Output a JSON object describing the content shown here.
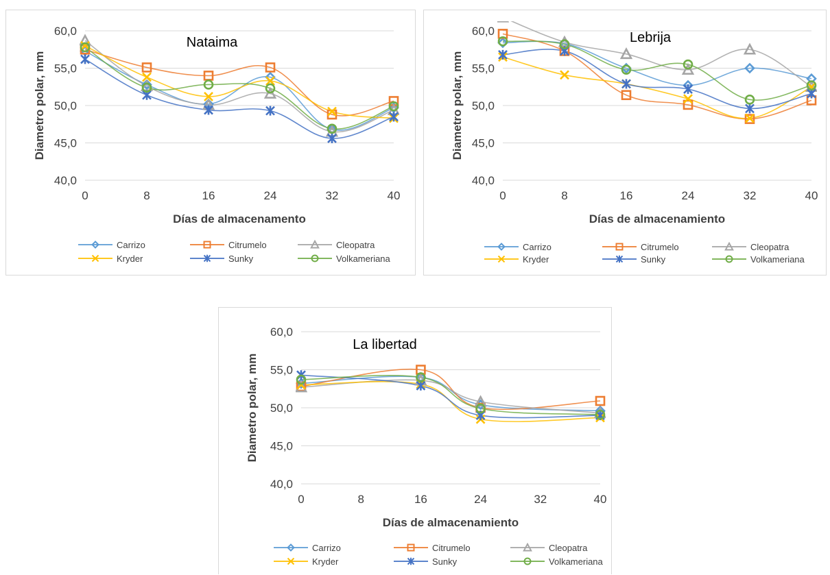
{
  "colors": {
    "Carrizo": "#5b9bd5",
    "Citrumelo": "#ed7d31",
    "Cleopatra": "#a5a5a5",
    "Kryder": "#ffc000",
    "Sunky": "#4472c4",
    "Volkameriana": "#70ad47",
    "grid": "#d9d9d9",
    "axis_text": "#404040"
  },
  "markers": {
    "Carrizo": "diamond",
    "Citrumelo": "square",
    "Cleopatra": "triangle",
    "Kryder": "x",
    "Sunky": "star",
    "Volkameriana": "circle"
  },
  "chart_data": [
    {
      "type": "line",
      "title": "Nataima",
      "xlabel": "Días de almacenamento",
      "ylabel": "Diametro polar, mm",
      "x": [
        0,
        8,
        16,
        24,
        32,
        40
      ],
      "y_ticks": [
        "40,0",
        "45,0",
        "50,0",
        "55,0",
        "60,0"
      ],
      "ylim": [
        40,
        60
      ],
      "grid": true,
      "legend": "bottom",
      "series": [
        {
          "name": "Carrizo",
          "values": [
            57.3,
            52.8,
            50.2,
            53.8,
            46.8,
            49.7
          ]
        },
        {
          "name": "Citrumelo",
          "values": [
            57.5,
            55.1,
            54.0,
            55.1,
            48.8,
            50.6
          ]
        },
        {
          "name": "Cleopatra",
          "values": [
            58.7,
            52.6,
            50.1,
            51.6,
            46.5,
            49.4
          ]
        },
        {
          "name": "Kryder",
          "values": [
            58.0,
            53.8,
            51.2,
            53.3,
            49.2,
            48.3
          ]
        },
        {
          "name": "Sunky",
          "values": [
            56.2,
            51.4,
            49.4,
            49.3,
            45.6,
            48.5
          ]
        },
        {
          "name": "Volkameriana",
          "values": [
            57.8,
            52.4,
            52.8,
            52.3,
            46.9,
            49.9
          ]
        }
      ]
    },
    {
      "type": "line",
      "title": "Lebrija",
      "xlabel": "Días de almacenamiento",
      "ylabel": "Diametro polar, mm",
      "x": [
        0,
        8,
        16,
        24,
        32,
        40
      ],
      "y_ticks": [
        "40,0",
        "45,0",
        "50,0",
        "55,0",
        "60,0"
      ],
      "ylim": [
        40,
        60
      ],
      "grid": true,
      "legend": "bottom",
      "series": [
        {
          "name": "Carrizo",
          "values": [
            58.4,
            58.3,
            55.0,
            52.7,
            55.0,
            53.6
          ]
        },
        {
          "name": "Citrumelo",
          "values": [
            59.6,
            57.3,
            51.4,
            50.1,
            48.2,
            50.7
          ]
        },
        {
          "name": "Cleopatra",
          "values": [
            61.8,
            58.5,
            56.9,
            54.8,
            57.5,
            52.5
          ]
        },
        {
          "name": "Kryder",
          "values": [
            56.5,
            54.1,
            52.9,
            50.9,
            48.3,
            52.5
          ]
        },
        {
          "name": "Sunky",
          "values": [
            56.8,
            57.3,
            52.9,
            52.2,
            49.6,
            51.6
          ]
        },
        {
          "name": "Volkameriana",
          "values": [
            58.6,
            58.2,
            54.8,
            55.5,
            50.8,
            52.7
          ]
        }
      ]
    },
    {
      "type": "line",
      "title": "La libertad",
      "xlabel": "Días de almacenamiento",
      "ylabel": "Diametro polar, mm",
      "x": [
        0,
        16,
        24,
        40
      ],
      "x_ticks": [
        "0",
        "8",
        "16",
        "24",
        "32",
        "40"
      ],
      "y_ticks": [
        "40,0",
        "45,0",
        "50,0",
        "55,0",
        "60,0"
      ],
      "ylim": [
        40,
        60
      ],
      "grid": true,
      "legend": "bottom",
      "series": [
        {
          "name": "Carrizo",
          "values": [
            53.2,
            54.0,
            50.4,
            49.6
          ]
        },
        {
          "name": "Citrumelo",
          "values": [
            52.8,
            55.0,
            50.0,
            50.9
          ]
        },
        {
          "name": "Cleopatra",
          "values": [
            52.7,
            53.6,
            50.8,
            49.3
          ]
        },
        {
          "name": "Kryder",
          "values": [
            53.0,
            53.1,
            48.5,
            48.7
          ]
        },
        {
          "name": "Sunky",
          "values": [
            54.3,
            52.9,
            49.0,
            49.0
          ]
        },
        {
          "name": "Volkameriana",
          "values": [
            53.7,
            54.0,
            49.9,
            49.1
          ]
        }
      ]
    }
  ]
}
